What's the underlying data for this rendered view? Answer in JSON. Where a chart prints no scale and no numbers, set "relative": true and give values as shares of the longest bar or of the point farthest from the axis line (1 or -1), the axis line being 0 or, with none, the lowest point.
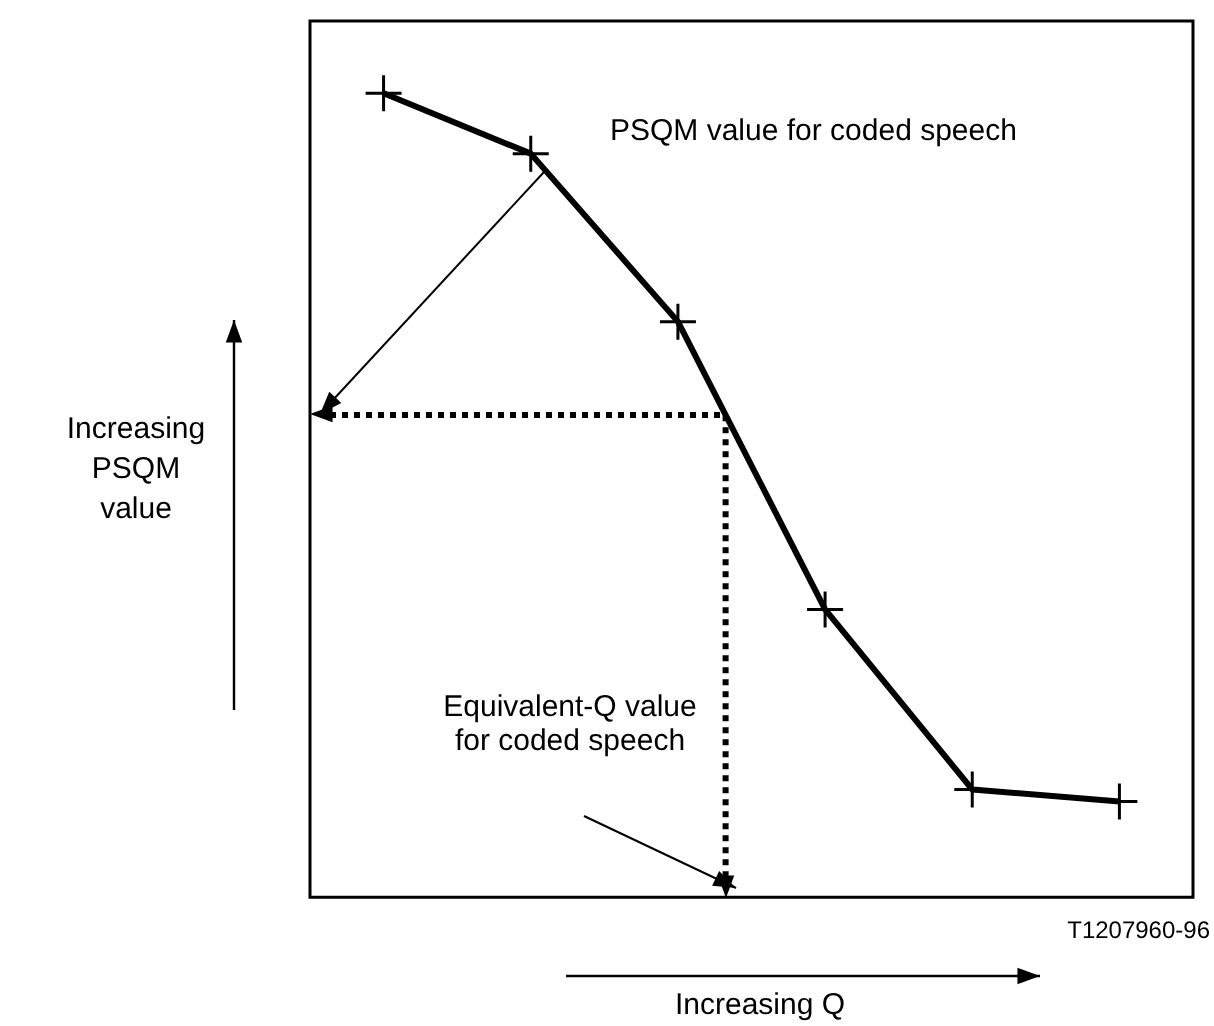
{
  "chart_data": {
    "type": "line",
    "xlabel": "Increasing Q",
    "ylabel": "Increasing PSQM value",
    "relative": true,
    "categories": [
      null,
      null,
      null,
      null,
      null,
      null
    ],
    "series": [
      {
        "color": "#000000",
        "values": [
          1,
          0.925,
          0.716,
          0.358,
          0.134,
          0.119
        ]
      }
    ],
    "marker": "cross",
    "legend": false,
    "grid": false,
    "ref_lines": [
      {
        "axis": "y",
        "value": 0.6,
        "line_style": "dotted",
        "color": "#000000"
      }
    ],
    "annotations": [
      "PSQM value for coded speech",
      "Equivalent-Q value for coded speech",
      "T1207960-96"
    ]
  }
}
